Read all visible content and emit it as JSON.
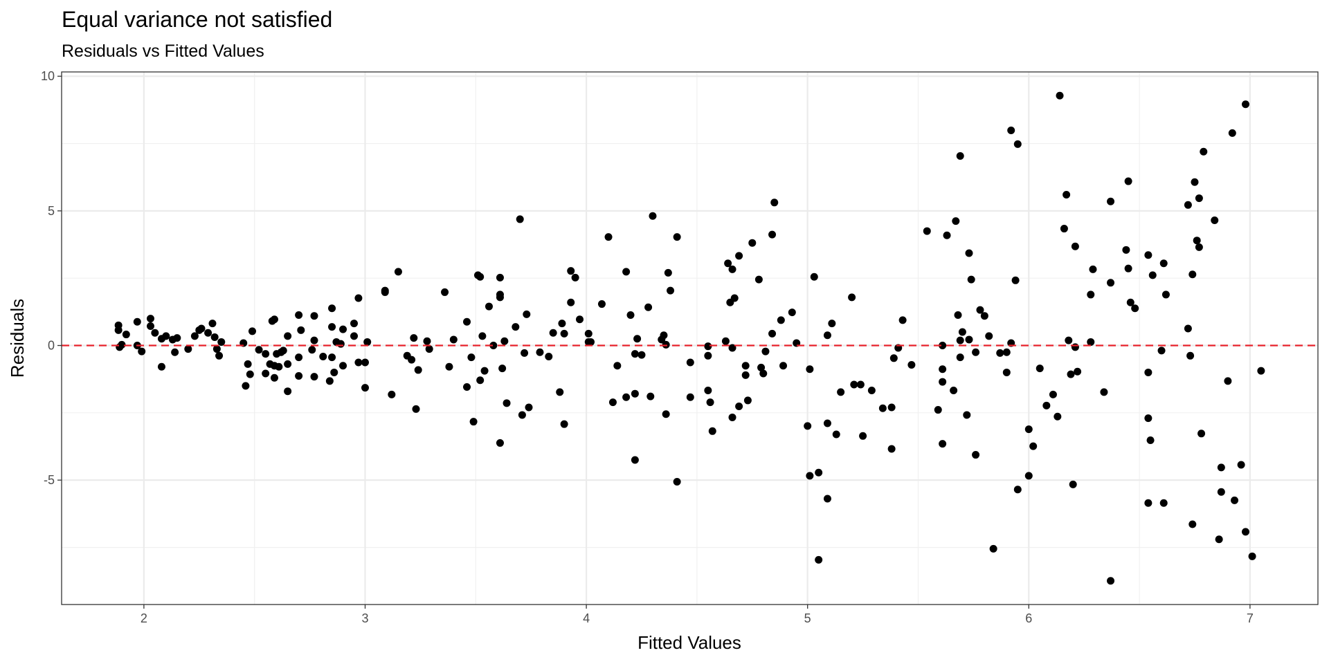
{
  "chart_data": {
    "type": "scatter",
    "title": "Equal variance not satisfied",
    "subtitle": "Residuals vs Fitted Values",
    "xlabel": "Fitted Values",
    "ylabel": "Residuals",
    "color": "#000000",
    "grid": true,
    "hline": {
      "y": 0,
      "color": "#e8202a",
      "linestyle": "dashed"
    },
    "xlim": [
      1.628,
      7.307
    ],
    "ylim": [
      -9.62,
      10.16
    ],
    "xticks": [
      2,
      3,
      4,
      5,
      6,
      7
    ],
    "yticks": [
      -5,
      0,
      5,
      10
    ],
    "x": [
      1.885,
      1.885,
      1.89,
      1.9,
      1.92,
      1.97,
      1.97,
      1.99,
      2.03,
      2.03,
      2.05,
      2.08,
      2.08,
      2.1,
      2.13,
      2.14,
      2.15,
      2.2,
      2.23,
      2.25,
      2.26,
      2.29,
      2.31,
      2.32,
      2.33,
      2.34,
      2.35,
      2.45,
      2.46,
      2.47,
      2.48,
      2.49,
      2.52,
      2.55,
      2.55,
      2.57,
      2.58,
      2.59,
      2.59,
      2.59,
      2.6,
      2.61,
      2.62,
      2.63,
      2.65,
      2.65,
      2.65,
      2.7,
      2.7,
      2.7,
      2.71,
      2.77,
      2.76,
      2.77,
      2.77,
      2.81,
      2.84,
      2.85,
      2.85,
      2.85,
      2.86,
      2.87,
      2.89,
      2.9,
      2.9,
      2.95,
      2.95,
      2.97,
      2.97,
      3.0,
      3.01,
      3.0,
      3.09,
      3.09,
      3.12,
      3.15,
      3.19,
      3.21,
      3.22,
      3.23,
      3.24,
      3.28,
      3.29,
      3.36,
      3.38,
      3.4,
      3.46,
      3.46,
      3.48,
      3.49,
      3.51,
      3.52,
      3.52,
      3.53,
      3.54,
      3.56,
      3.58,
      3.61,
      3.61,
      3.61,
      3.61,
      3.62,
      3.63,
      3.64,
      3.68,
      3.7,
      3.71,
      3.72,
      3.73,
      3.74,
      3.79,
      3.83,
      3.85,
      3.88,
      3.89,
      3.9,
      3.9,
      3.93,
      3.93,
      3.95,
      3.97,
      4.01,
      4.01,
      4.02,
      4.07,
      4.1,
      4.12,
      4.14,
      4.18,
      4.18,
      4.2,
      4.22,
      4.22,
      4.22,
      4.23,
      4.25,
      4.28,
      4.29,
      4.3,
      4.34,
      4.35,
      4.36,
      4.36,
      4.37,
      4.38,
      4.41,
      4.41,
      4.47,
      4.47,
      4.55,
      4.55,
      4.55,
      4.56,
      4.57,
      4.63,
      4.64,
      4.65,
      4.66,
      4.66,
      4.66,
      4.67,
      4.69,
      4.69,
      4.72,
      4.72,
      4.73,
      4.75,
      4.78,
      4.79,
      4.8,
      4.81,
      4.84,
      4.84,
      4.85,
      4.88,
      4.89,
      4.93,
      4.95,
      5.0,
      5.01,
      5.01,
      5.03,
      5.05,
      5.05,
      5.09,
      5.09,
      5.09,
      5.11,
      5.13,
      5.15,
      5.2,
      5.21,
      5.24,
      5.25,
      5.29,
      5.34,
      5.38,
      5.38,
      5.39,
      5.41,
      5.43,
      5.47,
      5.54,
      5.59,
      5.61,
      5.61,
      5.61,
      5.61,
      5.63,
      5.66,
      5.67,
      5.68,
      5.69,
      5.69,
      5.69,
      5.7,
      5.72,
      5.73,
      5.73,
      5.74,
      5.76,
      5.76,
      5.78,
      5.8,
      5.82,
      5.84,
      5.87,
      5.9,
      5.9,
      5.92,
      5.92,
      5.94,
      5.95,
      5.95,
      6.0,
      6.0,
      6.02,
      6.05,
      6.08,
      6.11,
      6.13,
      6.14,
      6.16,
      6.17,
      6.18,
      6.19,
      6.2,
      6.21,
      6.21,
      6.22,
      6.28,
      6.29,
      6.28,
      6.34,
      6.37,
      6.37,
      6.37,
      6.44,
      6.45,
      6.45,
      6.46,
      6.48,
      6.54,
      6.54,
      6.55,
      6.56,
      6.6,
      6.61,
      6.61,
      6.62,
      6.54,
      6.54,
      6.72,
      6.72,
      6.73,
      6.74,
      6.74,
      6.75,
      6.76,
      6.77,
      6.77,
      6.78,
      6.79,
      6.84,
      6.86,
      6.87,
      6.87,
      6.9,
      6.92,
      6.93,
      6.96,
      6.98,
      6.98,
      7.01,
      7.05
    ],
    "y": [
      0.75,
      0.57,
      -0.06,
      0.03,
      0.41,
      0.88,
      0.0,
      -0.22,
      1.0,
      0.72,
      0.47,
      0.25,
      -0.79,
      0.35,
      0.22,
      -0.25,
      0.28,
      -0.13,
      0.35,
      0.57,
      0.63,
      0.47,
      0.82,
      0.31,
      -0.13,
      -0.38,
      0.13,
      0.09,
      -1.5,
      -0.69,
      -1.07,
      0.53,
      -0.16,
      -0.31,
      -1.04,
      -0.69,
      0.91,
      -1.2,
      -0.75,
      0.97,
      -0.31,
      -0.79,
      -0.25,
      -0.19,
      -1.7,
      0.35,
      -0.69,
      -0.44,
      1.13,
      -1.13,
      0.57,
      1.1,
      -0.16,
      0.19,
      -1.16,
      -0.41,
      -1.32,
      1.38,
      -0.44,
      0.69,
      -1.0,
      0.13,
      0.06,
      -0.75,
      0.6,
      0.35,
      0.82,
      1.76,
      -0.63,
      -0.63,
      0.13,
      -1.57,
      2.04,
      1.98,
      -1.82,
      2.74,
      -0.38,
      -0.53,
      0.28,
      -2.36,
      -0.91,
      0.16,
      -0.13,
      1.98,
      -0.79,
      0.22,
      0.88,
      -1.54,
      -0.44,
      -2.83,
      2.61,
      2.55,
      -1.29,
      0.35,
      -0.94,
      1.45,
      0,
      1.89,
      1.79,
      2.52,
      -3.62,
      -0.85,
      0.16,
      -2.14,
      0.69,
      4.69,
      -2.58,
      -0.28,
      1.16,
      -2.3,
      -0.25,
      -0.41,
      0.47,
      -1.73,
      0.82,
      0.44,
      -2.92,
      1.6,
      2.77,
      2.52,
      0.97,
      0.13,
      0.44,
      0.13,
      1.54,
      4.03,
      -2.11,
      -0.75,
      2.74,
      -1.92,
      1.13,
      -0.31,
      -1.79,
      -4.25,
      0.25,
      -0.35,
      1.42,
      -1.89,
      4.81,
      0.22,
      0.38,
      -2.55,
      0.03,
      2.7,
      2.04,
      -5.06,
      4.03,
      -0.63,
      -1.92,
      -0.03,
      -0.38,
      -1.67,
      -2.11,
      -3.18,
      0.16,
      3.05,
      1.6,
      -2.67,
      -0.09,
      2.83,
      1.76,
      3.33,
      -2.26,
      -1.1,
      -0.75,
      -2.04,
      3.81,
      2.45,
      -0.82,
      -1.04,
      -0.22,
      4.12,
      0.44,
      5.31,
      0.94,
      -0.75,
      1.23,
      0.09,
      -2.99,
      -0.88,
      -4.84,
      2.55,
      -4.72,
      -7.96,
      0.38,
      -2.89,
      -5.69,
      0.82,
      -3.3,
      -1.73,
      1.79,
      -1.45,
      -1.45,
      -3.36,
      -1.67,
      -2.33,
      -3.84,
      -2.3,
      -0.47,
      -0.09,
      0.94,
      -0.72,
      4.25,
      -2.39,
      -0.88,
      -3.65,
      0,
      -1.35,
      4.09,
      -1.67,
      4.62,
      1.13,
      7.04,
      -0.44,
      0.19,
      0.5,
      -2.58,
      3.43,
      0.22,
      2.45,
      -0.25,
      -4.06,
      1.32,
      1.1,
      0.35,
      -7.55,
      -0.28,
      -0.25,
      -1.0,
      0.09,
      7.99,
      2.42,
      7.48,
      -5.35,
      -4.84,
      -3.11,
      -3.74,
      -0.85,
      -2.23,
      -1.82,
      -2.64,
      9.28,
      4.34,
      5.6,
      0.19,
      -1.07,
      -5.16,
      -0.06,
      3.68,
      -0.97,
      1.89,
      2.83,
      0.13,
      -1.73,
      5.35,
      2.33,
      -8.74,
      3.55,
      2.86,
      6.1,
      1.6,
      1.38,
      3.36,
      -1.0,
      -3.52,
      2.61,
      -0.19,
      -5.85,
      3.05,
      1.89,
      -5.85,
      -2.7,
      5.22,
      0.63,
      -0.38,
      -6.64,
      2.64,
      6.07,
      3.9,
      5.47,
      3.65,
      -3.27,
      7.2,
      4.65,
      -7.2,
      -4.53,
      -5.44,
      -1.32,
      7.89,
      -5.75,
      -4.43,
      -6.92,
      8.96,
      -7.83,
      -0.94
    ]
  }
}
